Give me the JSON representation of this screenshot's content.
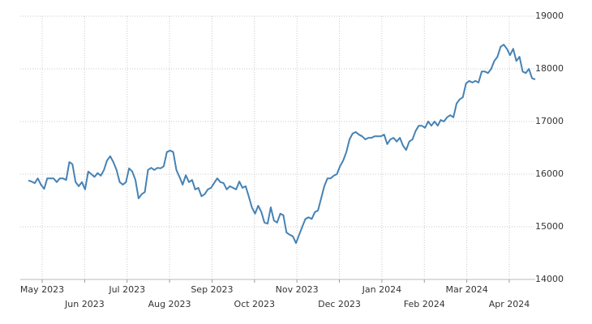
{
  "chart_data": {
    "type": "line",
    "xticks": [
      "May 2023",
      "Jun 2023",
      "Jul 2023",
      "Aug 2023",
      "Sep 2023",
      "Oct 2023",
      "Nov 2023",
      "Dec 2023",
      "Jan 2024",
      "Feb 2024",
      "Mar 2024",
      "Apr 2024"
    ],
    "ylim": [
      14000,
      19000
    ],
    "yticks": [
      14000,
      15000,
      16000,
      17000,
      18000,
      19000
    ],
    "grid": true,
    "series": [
      {
        "color": "#4682b4",
        "values": [
          15880,
          15860,
          15830,
          15920,
          15800,
          15720,
          15920,
          15920,
          15920,
          15850,
          15920,
          15920,
          15890,
          16230,
          16190,
          15850,
          15770,
          15850,
          15710,
          16050,
          16000,
          15950,
          16020,
          15970,
          16080,
          16260,
          16340,
          16230,
          16080,
          15850,
          15800,
          15850,
          16110,
          16050,
          15890,
          15540,
          15620,
          15660,
          16080,
          16120,
          16080,
          16120,
          16110,
          16150,
          16420,
          16450,
          16420,
          16080,
          15950,
          15800,
          15980,
          15850,
          15890,
          15710,
          15740,
          15580,
          15620,
          15710,
          15740,
          15830,
          15920,
          15850,
          15830,
          15710,
          15770,
          15740,
          15710,
          15860,
          15740,
          15770,
          15580,
          15370,
          15250,
          15400,
          15280,
          15080,
          15060,
          15370,
          15120,
          15080,
          15250,
          15220,
          14890,
          14850,
          14820,
          14690,
          14850,
          15000,
          15150,
          15180,
          15150,
          15280,
          15310,
          15540,
          15770,
          15920,
          15920,
          15970,
          16000,
          16150,
          16260,
          16420,
          16660,
          16770,
          16800,
          16750,
          16720,
          16660,
          16690,
          16690,
          16720,
          16720,
          16720,
          16750,
          16570,
          16660,
          16690,
          16620,
          16690,
          16540,
          16460,
          16620,
          16660,
          16820,
          16920,
          16920,
          16880,
          17000,
          16920,
          17000,
          16920,
          17030,
          17000,
          17080,
          17120,
          17080,
          17340,
          17420,
          17460,
          17720,
          17770,
          17740,
          17770,
          17740,
          17950,
          17950,
          17920,
          18000,
          18150,
          18230,
          18420,
          18460,
          18380,
          18260,
          18380,
          18150,
          18230,
          17950,
          17920,
          18000,
          17820,
          17800
        ]
      }
    ]
  }
}
